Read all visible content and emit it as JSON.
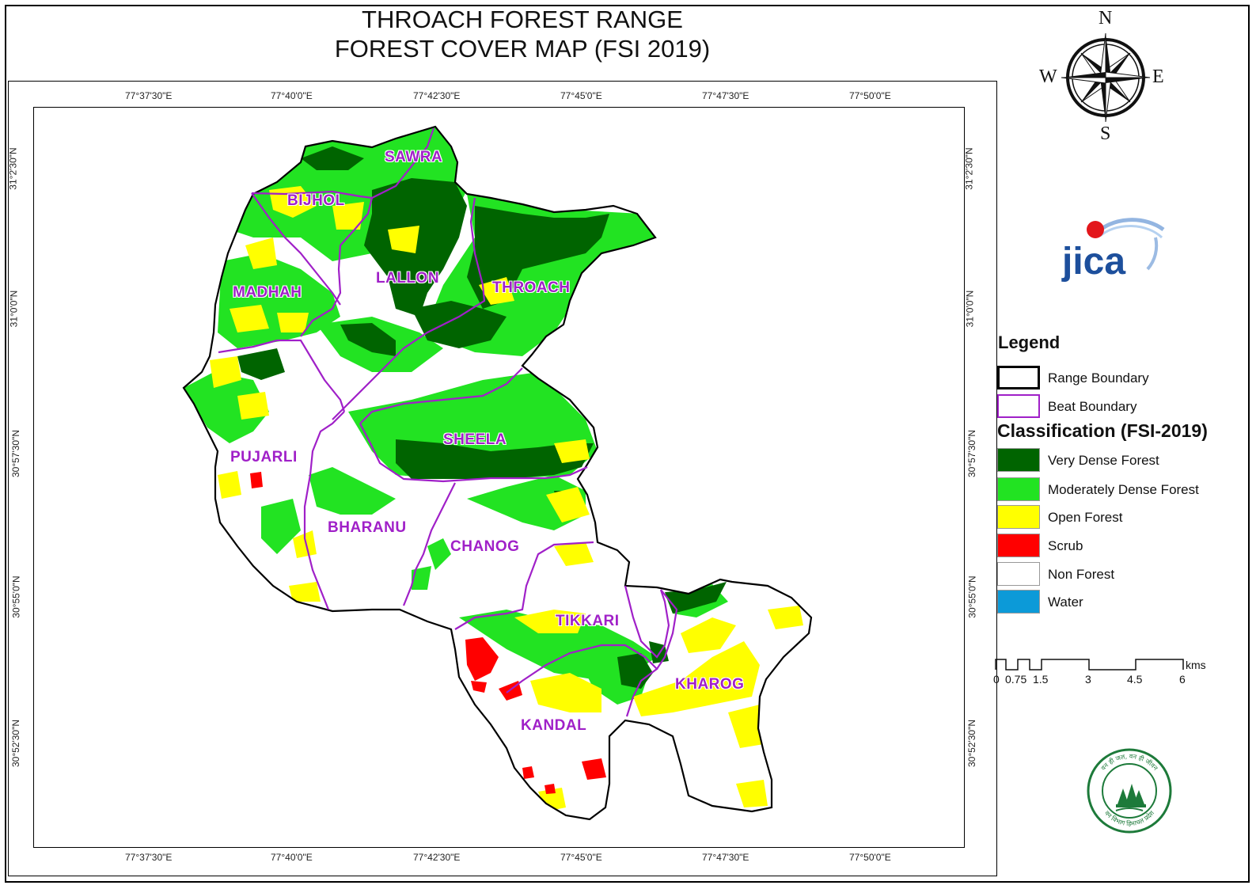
{
  "title": {
    "line1": "THROACH FOREST RANGE",
    "line2": "FOREST COVER MAP (FSI 2019)"
  },
  "graticule": {
    "longitudes": [
      "77°37'30\"E",
      "77°40'0\"E",
      "77°42'30\"E",
      "77°45'0\"E",
      "77°47'30\"E",
      "77°50'0\"E"
    ],
    "latitudes": [
      "31°2'30\"N",
      "31°0'0\"N",
      "30°57'30\"N",
      "30°55'0\"N",
      "30°52'30\"N"
    ]
  },
  "beats": [
    "SAWRA",
    "BIJHOL",
    "LALLON",
    "THROACH",
    "MADHAH",
    "SHEELA",
    "PUJARLI",
    "BHARANU",
    "CHANOG",
    "TIKKARI",
    "KHAROG",
    "KANDAL"
  ],
  "compass": {
    "north": "N",
    "south": "S",
    "east": "E",
    "west": "W"
  },
  "logo": {
    "text": "jica"
  },
  "legend": {
    "title": "Legend",
    "boundaries": [
      {
        "label": "Range Boundary",
        "color": "#000000"
      },
      {
        "label": "Beat Boundary",
        "color": "#a020c8"
      }
    ],
    "classification_title": "Classification (FSI-2019)",
    "classes": [
      {
        "label": "Very Dense Forest",
        "color": "#006400"
      },
      {
        "label": "Moderately Dense Forest",
        "color": "#22e322"
      },
      {
        "label": "Open Forest",
        "color": "#ffff00"
      },
      {
        "label": "Scrub",
        "color": "#ff0000"
      },
      {
        "label": "Non Forest",
        "color": "#ffffff"
      },
      {
        "label": "Water",
        "color": "#0c9ad8"
      }
    ]
  },
  "scalebar": {
    "labels": [
      "0",
      "0.75",
      "1.5",
      "3",
      "4.5",
      "6"
    ],
    "unit": "kms"
  },
  "emblem": {
    "text_top": "वन ही जल, वन ही जीवन",
    "text_bottom": "वन विभाग हिमाचल प्रदेश"
  }
}
